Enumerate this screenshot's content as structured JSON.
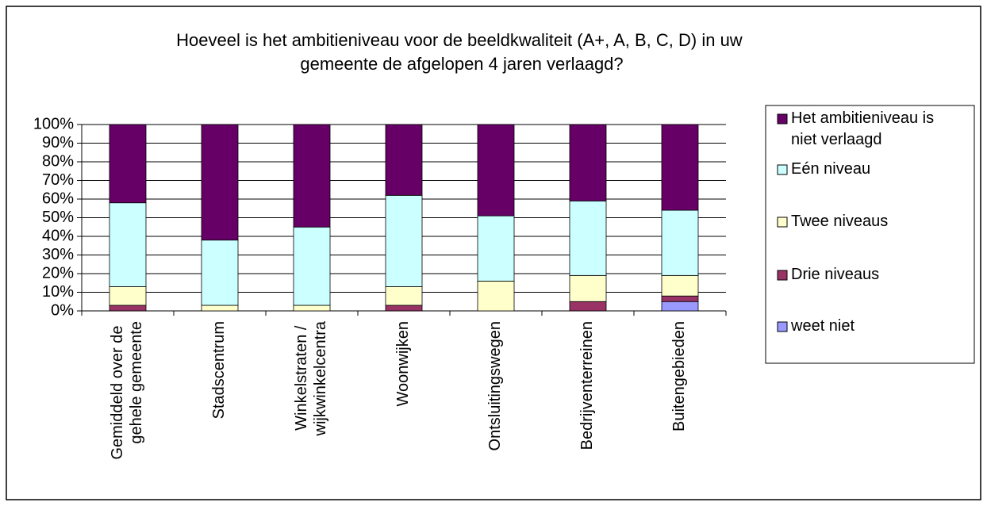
{
  "chart_data": {
    "type": "stacked_bar",
    "title": "Hoeveel is het ambitieniveau voor de beeldkwaliteit (A+, A, B, C, D) in uw gemeente de afgelopen 4 jaren verlaagd?",
    "categories": [
      "Gemiddeld over de gehele gemeente",
      "Stadscentrum",
      "Winkelstraten / wijkwinkelcentra",
      "Woonwijken",
      "Ontsluitingswegen",
      "Bedrijventerreinen",
      "Buitengebieden"
    ],
    "series": [
      {
        "name": "weet niet",
        "color": "#9999ff",
        "values": [
          0,
          0,
          0,
          0,
          0,
          0,
          5
        ]
      },
      {
        "name": "Drie niveaus",
        "color": "#993366",
        "values": [
          3,
          0,
          0,
          3,
          0,
          5,
          3
        ]
      },
      {
        "name": "Twee niveaus",
        "color": "#ffffcc",
        "values": [
          10,
          3,
          3,
          10,
          16,
          14,
          11
        ]
      },
      {
        "name": "Eén niveau",
        "color": "#ccffff",
        "values": [
          45,
          35,
          42,
          49,
          35,
          40,
          35
        ]
      },
      {
        "name": "Het ambitieniveau is niet verlaagd",
        "color": "#660066",
        "values": [
          42,
          62,
          55,
          38,
          49,
          41,
          46
        ]
      }
    ],
    "ylim": [
      0,
      100
    ],
    "yticks": [
      {
        "value": 0,
        "label": "0%"
      },
      {
        "value": 10,
        "label": "10%"
      },
      {
        "value": 20,
        "label": "20%"
      },
      {
        "value": 30,
        "label": "30%"
      },
      {
        "value": 40,
        "label": "40%"
      },
      {
        "value": 50,
        "label": "50%"
      },
      {
        "value": 60,
        "label": "60%"
      },
      {
        "value": 70,
        "label": "70%"
      },
      {
        "value": 80,
        "label": "80%"
      },
      {
        "value": 90,
        "label": "90%"
      },
      {
        "value": 100,
        "label": "100%"
      }
    ],
    "grid": true,
    "legend": "right"
  }
}
